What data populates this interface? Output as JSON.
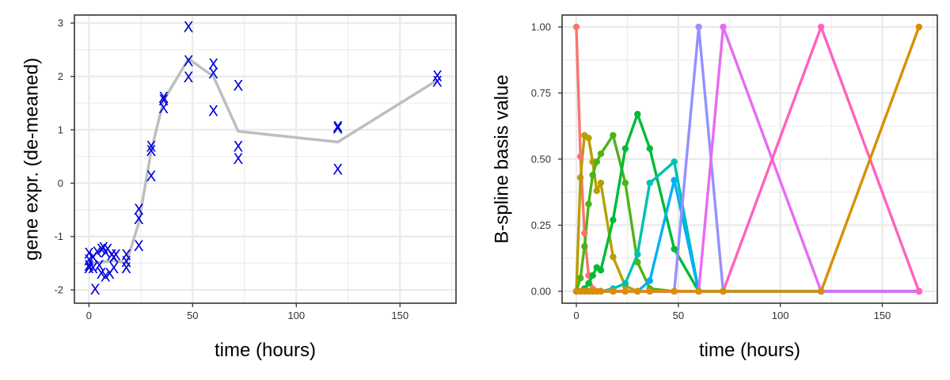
{
  "chart_data": [
    {
      "type": "scatter",
      "xlabel": "time (hours)",
      "ylabel": "gene expr. (de-meaned)",
      "xlim": [
        -7,
        177
      ],
      "ylim": [
        -2.25,
        3.15
      ],
      "x_ticks": [
        0,
        50,
        100,
        150
      ],
      "y_ticks": [
        -2,
        -1,
        0,
        1,
        2,
        3
      ],
      "grid": true,
      "marker": "X",
      "marker_color": "#0000dd",
      "fit_color": "#bebebe",
      "points": [
        [
          0,
          -1.32
        ],
        [
          0,
          -1.45
        ],
        [
          0,
          -1.55
        ],
        [
          0,
          -1.6
        ],
        [
          2,
          -1.4
        ],
        [
          2,
          -1.6
        ],
        [
          3,
          -2.0
        ],
        [
          4,
          -1.3
        ],
        [
          5,
          -1.55
        ],
        [
          6,
          -1.25
        ],
        [
          6,
          -1.7
        ],
        [
          7,
          -1.22
        ],
        [
          8,
          -1.3
        ],
        [
          8,
          -1.75
        ],
        [
          9,
          -1.25
        ],
        [
          10,
          -1.7
        ],
        [
          11,
          -1.35
        ],
        [
          12,
          -1.4
        ],
        [
          12,
          -1.6
        ],
        [
          13,
          -1.35
        ],
        [
          18,
          -1.35
        ],
        [
          18,
          -1.48
        ],
        [
          18,
          -1.6
        ],
        [
          24,
          -0.5
        ],
        [
          24,
          -0.68
        ],
        [
          24,
          -1.18
        ],
        [
          30,
          0.68
        ],
        [
          30,
          0.6
        ],
        [
          30,
          0.12
        ],
        [
          36,
          1.6
        ],
        [
          36,
          1.55
        ],
        [
          36,
          1.4
        ],
        [
          48,
          2.92
        ],
        [
          48,
          2.28
        ],
        [
          48,
          1.98
        ],
        [
          60,
          2.22
        ],
        [
          60,
          2.05
        ],
        [
          60,
          1.35
        ],
        [
          72,
          1.82
        ],
        [
          72,
          0.68
        ],
        [
          72,
          0.45
        ],
        [
          120,
          1.05
        ],
        [
          120,
          1.02
        ],
        [
          120,
          0.25
        ],
        [
          168,
          2.0
        ],
        [
          168,
          1.9
        ]
      ],
      "fit_line": {
        "x": [
          0,
          6,
          12,
          18,
          24,
          30,
          36,
          48,
          60,
          72,
          120,
          168
        ],
        "y": [
          -1.5,
          -1.48,
          -1.45,
          -1.5,
          -0.75,
          0.6,
          1.55,
          2.33,
          2.0,
          0.97,
          0.77,
          1.93
        ]
      }
    },
    {
      "type": "line",
      "xlabel": "time (hours)",
      "ylabel": "B-spline basis value",
      "xlim": [
        -7,
        177
      ],
      "ylim": [
        -0.045,
        1.045
      ],
      "x_ticks": [
        0,
        50,
        100,
        150
      ],
      "y_ticks": [
        0.0,
        0.25,
        0.5,
        0.75,
        1.0
      ],
      "y_tick_labels": [
        "0.00",
        "0.25",
        "0.50",
        "0.75",
        "1.00"
      ],
      "grid": true,
      "x": [
        0,
        2,
        4,
        6,
        8,
        10,
        12,
        18,
        24,
        30,
        36,
        48,
        60,
        72,
        120,
        168
      ],
      "series": [
        {
          "color": "#F8766D",
          "values": [
            1.0,
            0.51,
            0.22,
            0.06,
            0.01,
            0,
            0,
            0,
            0,
            0,
            0,
            0,
            0,
            0,
            0,
            0
          ]
        },
        {
          "color": "#B79F00",
          "values": [
            0,
            0.43,
            0.59,
            0.58,
            0.49,
            0.38,
            0.41,
            0.13,
            0.02,
            0,
            0,
            0,
            0,
            0,
            0,
            0
          ]
        },
        {
          "color": "#4BB519",
          "values": [
            0,
            0.05,
            0.17,
            0.33,
            0.44,
            0.49,
            0.52,
            0.59,
            0.41,
            0.11,
            0.01,
            0,
            0,
            0,
            0,
            0
          ]
        },
        {
          "color": "#00BA38",
          "values": [
            0,
            0,
            0.01,
            0.03,
            0.06,
            0.09,
            0.08,
            0.27,
            0.54,
            0.67,
            0.54,
            0.16,
            0,
            0,
            0,
            0
          ]
        },
        {
          "color": "#00C0AF",
          "values": [
            0,
            0,
            0,
            0,
            0,
            0,
            0,
            0.01,
            0.03,
            0.14,
            0.41,
            0.49,
            0,
            0,
            0,
            0
          ]
        },
        {
          "color": "#00B0F6",
          "values": [
            0,
            0,
            0,
            0,
            0,
            0,
            0,
            0,
            0,
            0,
            0.04,
            0.42,
            0,
            0,
            0,
            0
          ]
        },
        {
          "color": "#9590FF",
          "values": [
            0,
            0,
            0,
            0,
            0,
            0,
            0,
            0,
            0,
            0,
            0,
            0,
            1.0,
            0,
            0,
            0
          ]
        },
        {
          "color": "#E76BF3",
          "values": [
            0,
            0,
            0,
            0,
            0,
            0,
            0,
            0,
            0,
            0,
            0,
            0,
            0,
            1.0,
            0.0,
            0
          ]
        },
        {
          "color": "#FF62BC",
          "values": [
            0,
            0,
            0,
            0,
            0,
            0,
            0,
            0,
            0,
            0,
            0,
            0,
            0,
            0,
            1.0,
            0
          ]
        },
        {
          "color": "#D89000",
          "values": [
            0,
            0,
            0,
            0,
            0,
            0,
            0,
            0,
            0,
            0,
            0,
            0,
            0,
            0,
            0,
            1.0
          ]
        }
      ]
    }
  ]
}
